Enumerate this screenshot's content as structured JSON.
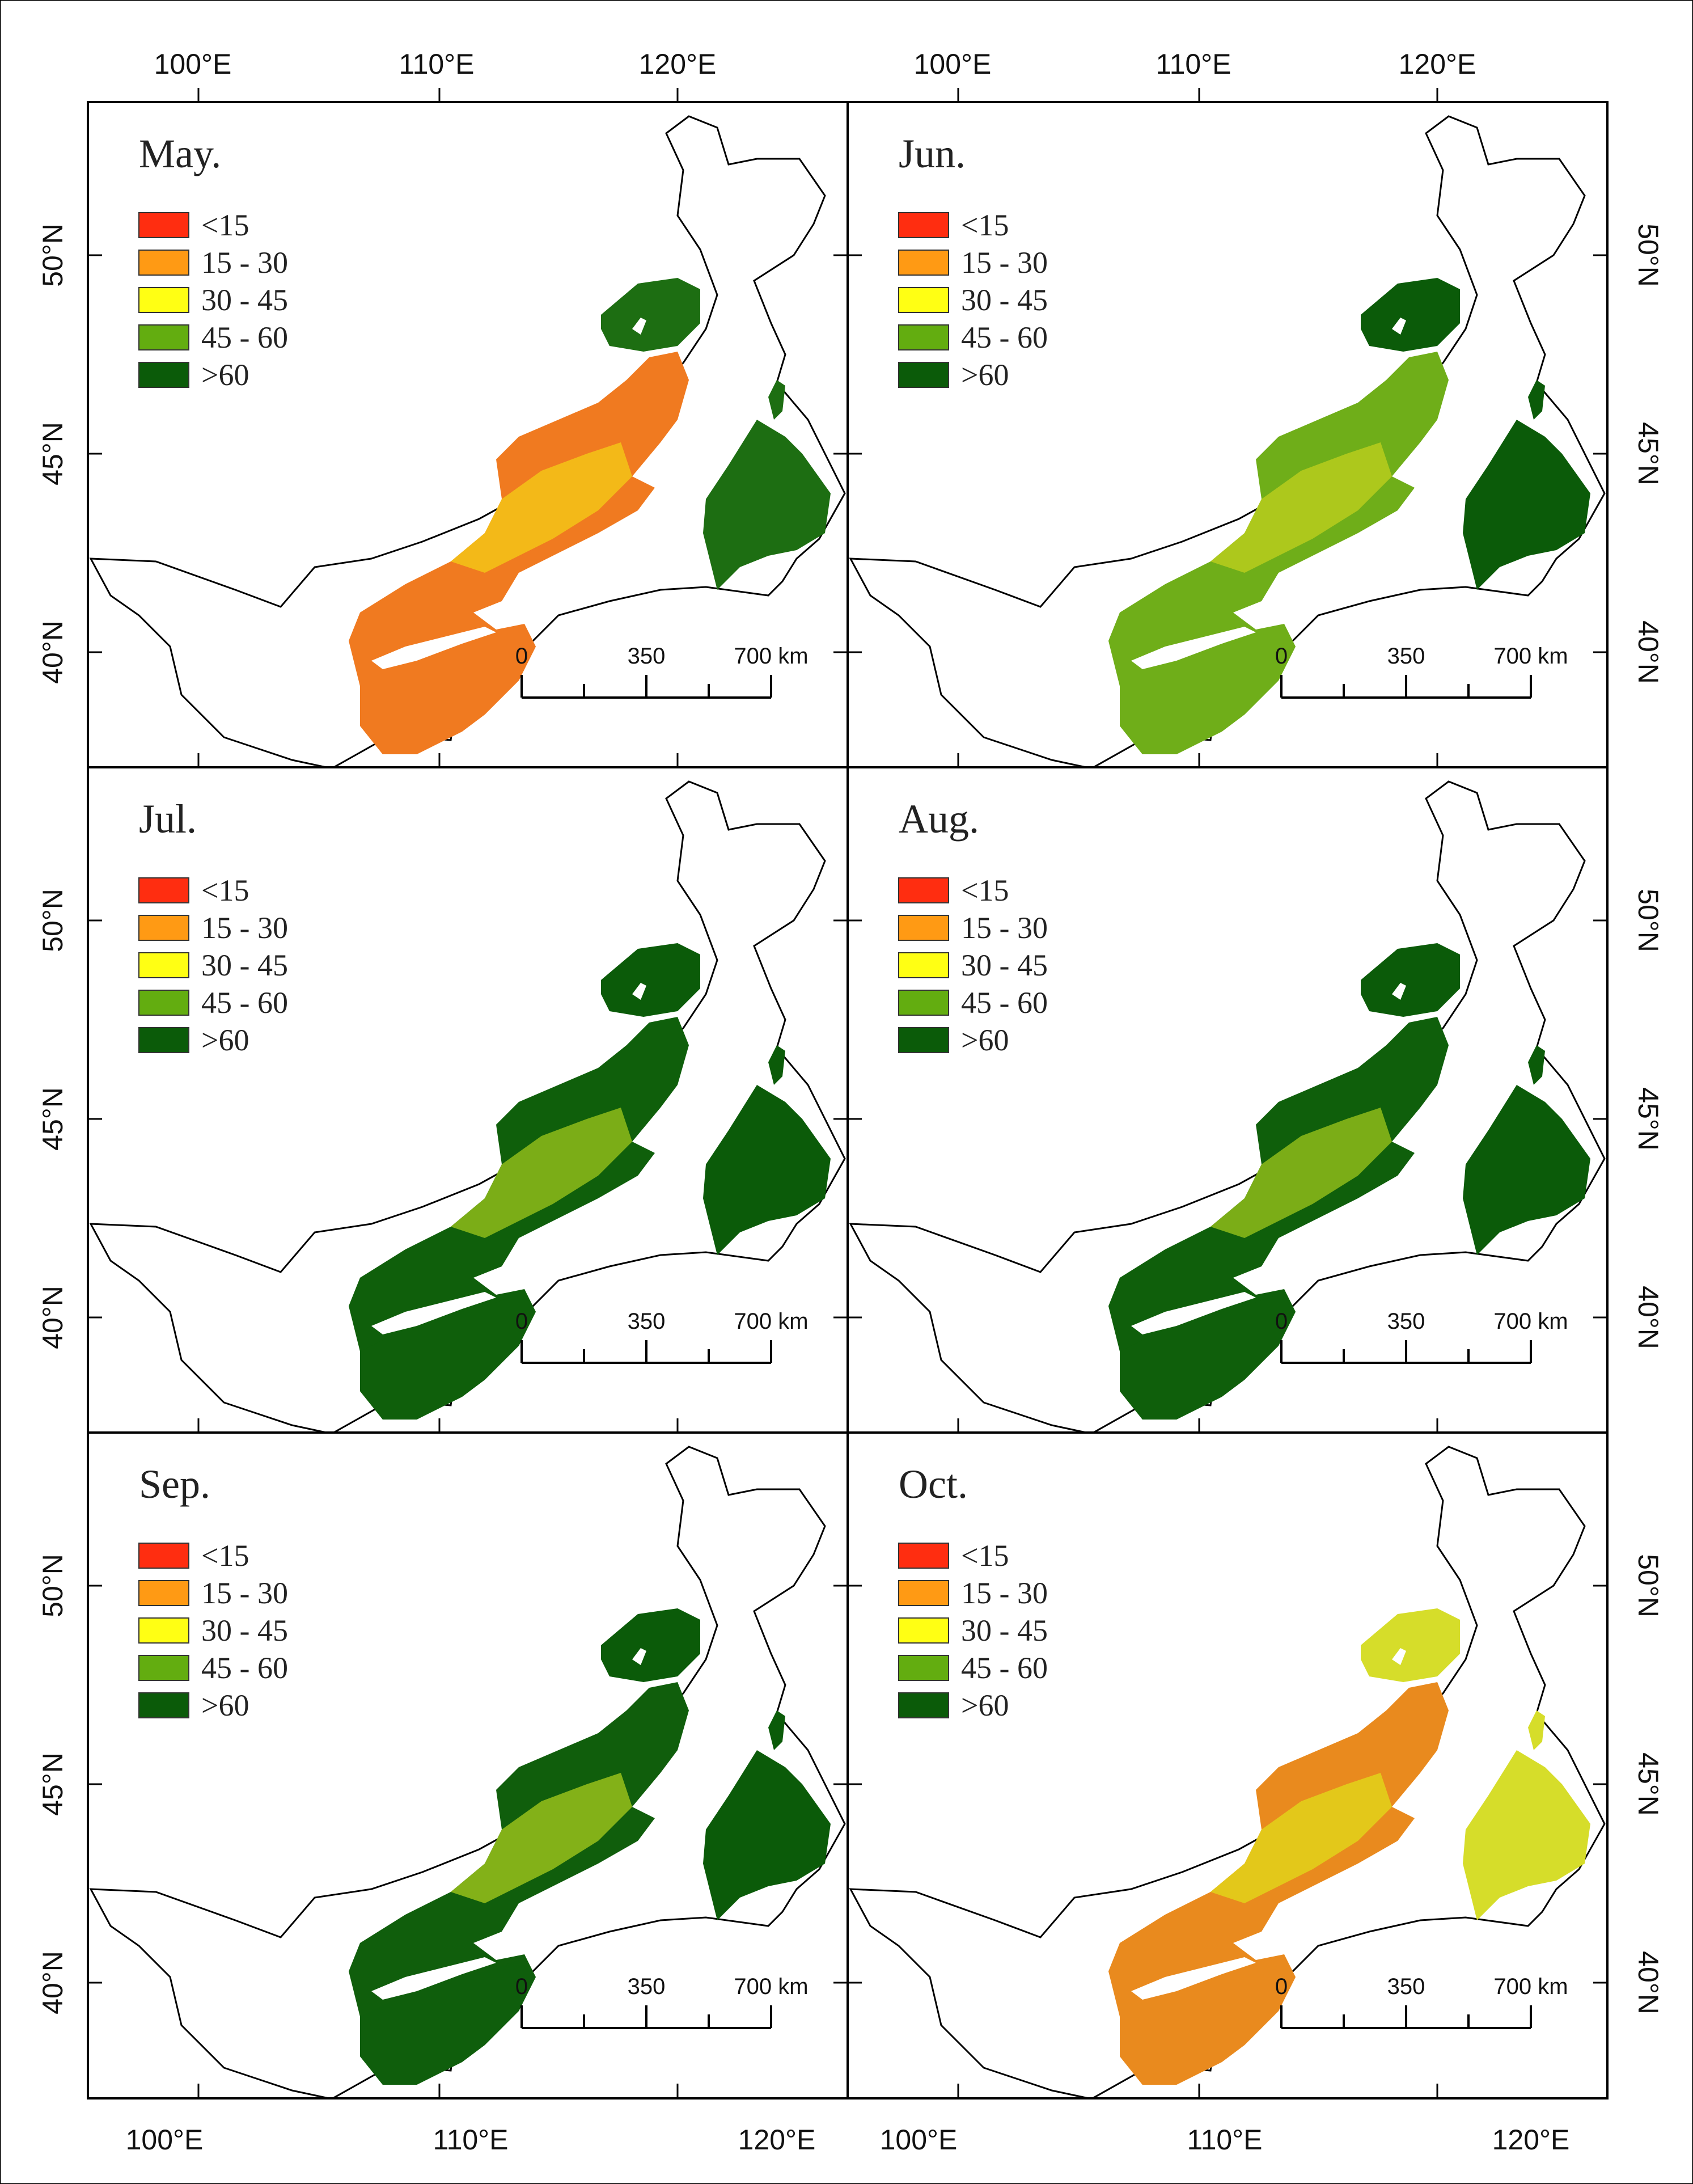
{
  "panels": [
    {
      "month": "May.",
      "bg": "#f07a20",
      "mid": "#f3c417",
      "north": "#1d6e12"
    },
    {
      "month": "Jun.",
      "bg": "#6fae19",
      "mid": "#b9cd1d",
      "north": "#0b5b09"
    },
    {
      "month": "Jul.",
      "bg": "#0f5f0b",
      "mid": "#8ebb1a",
      "north": "#0b5b09"
    },
    {
      "month": "Aug.",
      "bg": "#0f5f0b",
      "mid": "#8ebb1a",
      "north": "#0b5b09"
    },
    {
      "month": "Sep.",
      "bg": "#105e0c",
      "mid": "#98c01b",
      "north": "#0b5b09"
    },
    {
      "month": "Oct.",
      "bg": "#e98a1e",
      "mid": "#e2d21a",
      "north": "#d6dd2a"
    }
  ],
  "legend": [
    {
      "label": "<15",
      "color": "#ff2d10"
    },
    {
      "label": "15 - 30",
      "color": "#ff9a14"
    },
    {
      "label": "30 - 45",
      "color": "#ffff14"
    },
    {
      "label": "45 - 60",
      "color": "#63ad10"
    },
    {
      "label": ">60",
      "color": "#0b5b09"
    }
  ],
  "scale_bar": {
    "labels": [
      "0",
      "350",
      "700 km"
    ]
  },
  "axes": {
    "top_left": [
      "100°E",
      "110°E",
      "120°E"
    ],
    "top_right": [
      "100°E",
      "110°E",
      "120°E"
    ],
    "bottom_left": [
      "100°E",
      "110°E",
      "120°E"
    ],
    "bottom_right": [
      "100°E",
      "110°E",
      "120°E"
    ],
    "left_lat": [
      "50°N",
      "45°N",
      "40°N"
    ],
    "right_lat": [
      "50°N",
      "45°N",
      "40°N"
    ]
  }
}
